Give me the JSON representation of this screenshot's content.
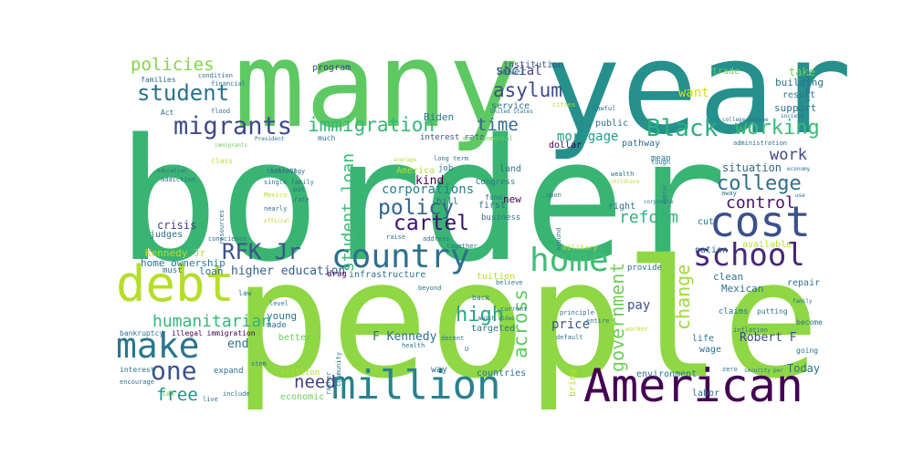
{
  "wordcloud": {
    "background": "#ffffff",
    "palette": [
      "#440154",
      "#31688e",
      "#26828e",
      "#1f9e89",
      "#35b779",
      "#6ece58",
      "#b5de2b",
      "#fde725"
    ],
    "words": [
      {
        "t": "border",
        "size": 36,
        "color": "#3ab473"
      },
      {
        "t": "people",
        "size": 35,
        "color": "#8fd744"
      },
      {
        "t": "year",
        "size": 30,
        "color": "#25908c"
      },
      {
        "t": "many",
        "size": 28,
        "color": "#5ec962"
      },
      {
        "t": "American",
        "size": 14,
        "color": "#440154"
      },
      {
        "t": "million",
        "size": 12,
        "color": "#26828e"
      },
      {
        "t": "cost",
        "size": 12,
        "color": "#3b518b"
      },
      {
        "t": "home",
        "size": 10,
        "color": "#3fbc73"
      },
      {
        "t": "debt",
        "size": 11,
        "color": "#b5de2b"
      },
      {
        "t": "make",
        "size": 10,
        "color": "#2a768e"
      },
      {
        "t": "country",
        "size": 9,
        "color": "#2d708e"
      },
      {
        "t": "school",
        "size": 8,
        "color": "#482878"
      },
      {
        "t": "migrants",
        "size": 7,
        "color": "#3e4989"
      },
      {
        "t": "Black",
        "size": 6,
        "color": "#2ab07f"
      },
      {
        "t": "one",
        "size": 6,
        "color": "#3b528b"
      },
      {
        "t": "student",
        "size": 5,
        "color": "#2c728e"
      },
      {
        "t": "immigration",
        "size": 5,
        "color": "#35b779"
      },
      {
        "t": "working",
        "size": 5,
        "color": "#3aba76"
      },
      {
        "t": "college",
        "size": 5,
        "color": "#2e6f8e"
      },
      {
        "t": "RFK Jr",
        "size": 5,
        "color": "#3b528b"
      },
      {
        "t": "government",
        "size": 5,
        "color": "#6ece58"
      },
      {
        "t": "across",
        "size": 5,
        "color": "#5ec962"
      },
      {
        "t": "change",
        "size": 5,
        "color": "#9fda3a"
      },
      {
        "t": "humanitarian",
        "size": 4,
        "color": "#35b779"
      },
      {
        "t": "policies",
        "size": 4,
        "color": "#84d44b"
      },
      {
        "t": "asylum",
        "size": 4,
        "color": "#3e4a89"
      },
      {
        "t": "policy",
        "size": 4,
        "color": "#33638d"
      },
      {
        "t": "cartel",
        "size": 4,
        "color": "#3b0f70"
      },
      {
        "t": "reform",
        "size": 4,
        "color": "#2fb47c"
      },
      {
        "t": "student loan",
        "size": 4,
        "color": "#3aba76"
      },
      {
        "t": "high",
        "size": 4,
        "color": "#22a785"
      },
      {
        "t": "need",
        "size": 4,
        "color": "#424086"
      },
      {
        "t": "free",
        "size": 4,
        "color": "#21918c"
      },
      {
        "t": "time",
        "size": 4,
        "color": "#31688e"
      },
      {
        "t": "control",
        "size": 4,
        "color": "#471365"
      },
      {
        "t": "work",
        "size": 4,
        "color": "#3e4989"
      },
      {
        "t": "social",
        "size": 3,
        "color": "#433e85"
      },
      {
        "t": "mortgage",
        "size": 3,
        "color": "#1f9e89"
      },
      {
        "t": "corporations",
        "size": 3,
        "color": "#277f8e"
      },
      {
        "t": "higher education",
        "size": 3,
        "color": "#34608d"
      },
      {
        "t": "kind",
        "size": 3,
        "color": "#440154"
      },
      {
        "t": "situation",
        "size": 3,
        "color": "#31688e"
      },
      {
        "t": "want",
        "size": 3,
        "color": "#cfe11c"
      },
      {
        "t": "lower",
        "size": 3,
        "color": "#2c728e"
      },
      {
        "t": "pay",
        "size": 3,
        "color": "#3b528b"
      },
      {
        "t": "price",
        "size": 3,
        "color": "#39568c"
      },
      {
        "t": "end",
        "size": 3,
        "color": "#2c728e"
      },
      {
        "t": "Robert F",
        "size": 3,
        "color": "#3e4a89"
      },
      {
        "t": "F Kennedy",
        "size": 3,
        "color": "#2d708e"
      },
      {
        "t": "Today",
        "size": 3,
        "color": "#2c728e"
      },
      {
        "t": "Kennedy Jr",
        "size": 3,
        "color": "#b5de2b"
      },
      {
        "t": "home ownership",
        "size": 3,
        "color": "#2a768e"
      },
      {
        "t": "young",
        "size": 3,
        "color": "#2c728e"
      },
      {
        "t": "service",
        "size": 2,
        "color": "#2c728e"
      },
      {
        "t": "Biden",
        "size": 2,
        "color": "#2c728e"
      },
      {
        "t": "program",
        "size": 2,
        "color": "#433e85"
      },
      {
        "t": "institution",
        "size": 2,
        "color": "#3b528b"
      },
      {
        "t": "trade",
        "size": 2,
        "color": "#6ece58"
      },
      {
        "t": "take",
        "size": 2,
        "color": "#6ece58"
      },
      {
        "t": "building",
        "size": 2,
        "color": "#2c728e"
      },
      {
        "t": "result",
        "size": 2,
        "color": "#2c728e"
      },
      {
        "t": "support",
        "size": 2,
        "color": "#2c728e"
      },
      {
        "t": "public",
        "size": 2,
        "color": "#2c728e"
      },
      {
        "t": "pathway",
        "size": 2,
        "color": "#2c728e"
      },
      {
        "t": "dollar",
        "size": 2,
        "color": "#440154"
      },
      {
        "t": "interest rate",
        "size": 2,
        "color": "#3b528b"
      },
      {
        "t": "America",
        "size": 2,
        "color": "#b5de2b"
      },
      {
        "t": "job",
        "size": 2,
        "color": "#2c728e"
      },
      {
        "t": "land",
        "size": 2,
        "color": "#2c728e"
      },
      {
        "t": "Congress",
        "size": 2,
        "color": "#2c728e"
      },
      {
        "t": "bill",
        "size": 2,
        "color": "#2c728e"
      },
      {
        "t": "first",
        "size": 2,
        "color": "#2c728e"
      },
      {
        "t": "new",
        "size": 2,
        "color": "#440154"
      },
      {
        "t": "business",
        "size": 2,
        "color": "#2c728e"
      },
      {
        "t": "right",
        "size": 2,
        "color": "#2c728e"
      },
      {
        "t": "cut",
        "size": 2,
        "color": "#2c728e"
      },
      {
        "t": "nation",
        "size": 2,
        "color": "#2c728e"
      },
      {
        "t": "available",
        "size": 2,
        "color": "#b5de2b"
      },
      {
        "t": "clean",
        "size": 2,
        "color": "#2c728e"
      },
      {
        "t": "Mexican",
        "size": 2,
        "color": "#2c728e"
      },
      {
        "t": "repair",
        "size": 2,
        "color": "#2c728e"
      },
      {
        "t": "mean",
        "size": 2,
        "color": "#2c728e"
      },
      {
        "t": "crisis",
        "size": 2,
        "color": "#433e85"
      },
      {
        "t": "judges",
        "size": 2,
        "color": "#2c728e"
      },
      {
        "t": "loan",
        "size": 2,
        "color": "#2c728e"
      },
      {
        "t": "must",
        "size": 2,
        "color": "#2c728e"
      },
      {
        "t": "made",
        "size": 2,
        "color": "#2c728e"
      },
      {
        "t": "better",
        "size": 2,
        "color": "#6ece58"
      },
      {
        "t": "expand",
        "size": 2,
        "color": "#2c728e"
      },
      {
        "t": "economic",
        "size": 2,
        "color": "#6ece58"
      },
      {
        "t": "trillion",
        "size": 2,
        "color": "#b5de2b"
      },
      {
        "t": "countries",
        "size": 2,
        "color": "#2c728e"
      },
      {
        "t": "environment",
        "size": 2,
        "color": "#2c728e"
      },
      {
        "t": "labor",
        "size": 2,
        "color": "#2c728e"
      },
      {
        "t": "infrastructure",
        "size": 2,
        "color": "#2c728e"
      },
      {
        "t": "drug",
        "size": 2,
        "color": "#440154"
      },
      {
        "t": "tuition",
        "size": 2,
        "color": "#b5de2b"
      },
      {
        "t": "targeted",
        "size": 2,
        "color": "#2c728e"
      },
      {
        "t": "provide",
        "size": 2,
        "color": "#2c728e"
      },
      {
        "t": "way",
        "size": 2,
        "color": "#2c728e"
      },
      {
        "t": "bring",
        "size": 2,
        "color": "#b5de2b"
      },
      {
        "t": "wage",
        "size": 2,
        "color": "#2c728e"
      },
      {
        "t": "life",
        "size": 2,
        "color": "#2c728e"
      },
      {
        "t": "claims",
        "size": 2,
        "color": "#2c728e"
      },
      {
        "t": "putting",
        "size": 2,
        "color": "#2c728e"
      },
      {
        "t": "become",
        "size": 2,
        "color": "#2c728e"
      },
      {
        "t": "going",
        "size": 2,
        "color": "#2c728e"
      },
      {
        "t": "inflation",
        "size": 1,
        "color": "#2c728e"
      },
      {
        "t": "zero",
        "size": 1,
        "color": "#2c728e"
      },
      {
        "t": "security",
        "size": 1,
        "color": "#2c728e"
      },
      {
        "t": "per",
        "size": 1,
        "color": "#2c728e"
      },
      {
        "t": "bankruptcy",
        "size": 1,
        "color": "#2c728e"
      },
      {
        "t": "illegal immigration",
        "size": 1,
        "color": "#440154"
      },
      {
        "t": "interest",
        "size": 1,
        "color": "#2c728e"
      },
      {
        "t": "encourage",
        "size": 1,
        "color": "#2c728e"
      },
      {
        "t": "tax",
        "size": 1,
        "color": "#6ece58"
      },
      {
        "t": "live",
        "size": 1,
        "color": "#2c728e"
      },
      {
        "t": "include",
        "size": 1,
        "color": "#2c728e"
      },
      {
        "t": "law",
        "size": 1,
        "color": "#2c728e"
      },
      {
        "t": "level",
        "size": 1,
        "color": "#2c728e"
      },
      {
        "t": "stem",
        "size": 1,
        "color": "#2c728e"
      },
      {
        "t": "rather",
        "size": 1,
        "color": "#2c728e"
      },
      {
        "t": "community",
        "size": 1,
        "color": "#2c728e"
      },
      {
        "t": "health",
        "size": 1,
        "color": "#2c728e"
      },
      {
        "t": "decent",
        "size": 1,
        "color": "#2c728e"
      },
      {
        "t": "default",
        "size": 1,
        "color": "#2c728e"
      },
      {
        "t": "entire",
        "size": 1,
        "color": "#2c728e"
      },
      {
        "t": "principle",
        "size": 1,
        "color": "#2c728e"
      },
      {
        "t": "worker",
        "size": 1,
        "color": "#b5de2b"
      },
      {
        "t": "raise",
        "size": 1,
        "color": "#2c728e"
      },
      {
        "t": "address",
        "size": 1,
        "color": "#2c728e"
      },
      {
        "t": "together",
        "size": 1,
        "color": "#2c728e"
      },
      {
        "t": "believe",
        "size": 1,
        "color": "#2c728e"
      },
      {
        "t": "back",
        "size": 1,
        "color": "#2c728e"
      },
      {
        "t": "current",
        "size": 1,
        "color": "#2c728e"
      },
      {
        "t": "beyond",
        "size": 1,
        "color": "#2c728e"
      },
      {
        "t": "fund",
        "size": 1,
        "color": "#2c728e"
      },
      {
        "t": "upon",
        "size": 1,
        "color": "#2c728e"
      },
      {
        "t": "around",
        "size": 1,
        "color": "#2c728e"
      },
      {
        "t": "military",
        "size": 1,
        "color": "#b5de2b"
      },
      {
        "t": "long term",
        "size": 1,
        "color": "#2c728e"
      },
      {
        "t": "much",
        "size": 1,
        "color": "#2c728e"
      },
      {
        "t": "put",
        "size": 1,
        "color": "#2c728e"
      },
      {
        "t": "rate",
        "size": 1,
        "color": "#2c728e"
      },
      {
        "t": "bailout",
        "size": 1,
        "color": "#2c728e"
      },
      {
        "t": "financial",
        "size": 1,
        "color": "#2c728e"
      },
      {
        "t": "condition",
        "size": 1,
        "color": "#2c728e"
      },
      {
        "t": "families",
        "size": 1,
        "color": "#2c728e"
      },
      {
        "t": "Act",
        "size": 1,
        "color": "#2c728e"
      },
      {
        "t": "flood",
        "size": 1,
        "color": "#2c728e"
      },
      {
        "t": "immigrants",
        "size": 1,
        "color": "#6ece58"
      },
      {
        "t": "President",
        "size": 1,
        "color": "#2c728e"
      },
      {
        "t": "United States",
        "size": 1,
        "color": "#2c728e"
      },
      {
        "t": "cities",
        "size": 1,
        "color": "#b5de2b"
      },
      {
        "t": "lawful",
        "size": 1,
        "color": "#2c728e"
      },
      {
        "t": "environmental",
        "size": 1,
        "color": "#6ece58"
      },
      {
        "t": "class",
        "size": 1,
        "color": "#b5de2b"
      },
      {
        "t": "technology",
        "size": 1,
        "color": "#2c728e"
      },
      {
        "t": "single family",
        "size": 1,
        "color": "#2c728e"
      },
      {
        "t": "Mexico",
        "size": 1,
        "color": "#b5de2b"
      },
      {
        "t": "nearly",
        "size": 1,
        "color": "#2c728e"
      },
      {
        "t": "official",
        "size": 1,
        "color": "#b5de2b"
      },
      {
        "t": "education",
        "size": 1,
        "color": "#2c728e"
      },
      {
        "t": "addiction",
        "size": 1,
        "color": "#2c728e"
      },
      {
        "t": "resources",
        "size": 1,
        "color": "#2c728e"
      },
      {
        "t": "conscience",
        "size": 1,
        "color": "#2c728e"
      },
      {
        "t": "wealth",
        "size": 1,
        "color": "#2c728e"
      },
      {
        "t": "childcare",
        "size": 1,
        "color": "#b5de2b"
      },
      {
        "t": "tough",
        "size": 1,
        "color": "#2c728e"
      },
      {
        "t": "debtor",
        "size": 1,
        "color": "#2c728e"
      },
      {
        "t": "corporate",
        "size": 1,
        "color": "#2c728e"
      },
      {
        "t": "economy",
        "size": 1,
        "color": "#2c728e"
      },
      {
        "t": "college degree",
        "size": 1,
        "color": "#2c728e"
      },
      {
        "t": "administration",
        "size": 1,
        "color": "#2c728e"
      },
      {
        "t": "society",
        "size": 1,
        "color": "#2c728e"
      },
      {
        "t": "criminal",
        "size": 1,
        "color": "#2c728e"
      },
      {
        "t": "Watch video",
        "size": 1,
        "color": "#2c728e"
      },
      {
        "t": "average",
        "size": 1,
        "color": "#b5de2b"
      },
      {
        "t": "family",
        "size": 1,
        "color": "#2c728e"
      },
      {
        "t": "away",
        "size": 1,
        "color": "#2c728e"
      },
      {
        "t": "use",
        "size": 1,
        "color": "#2c728e"
      },
      {
        "t": "U",
        "size": 1,
        "color": "#2c728e"
      }
    ]
  }
}
